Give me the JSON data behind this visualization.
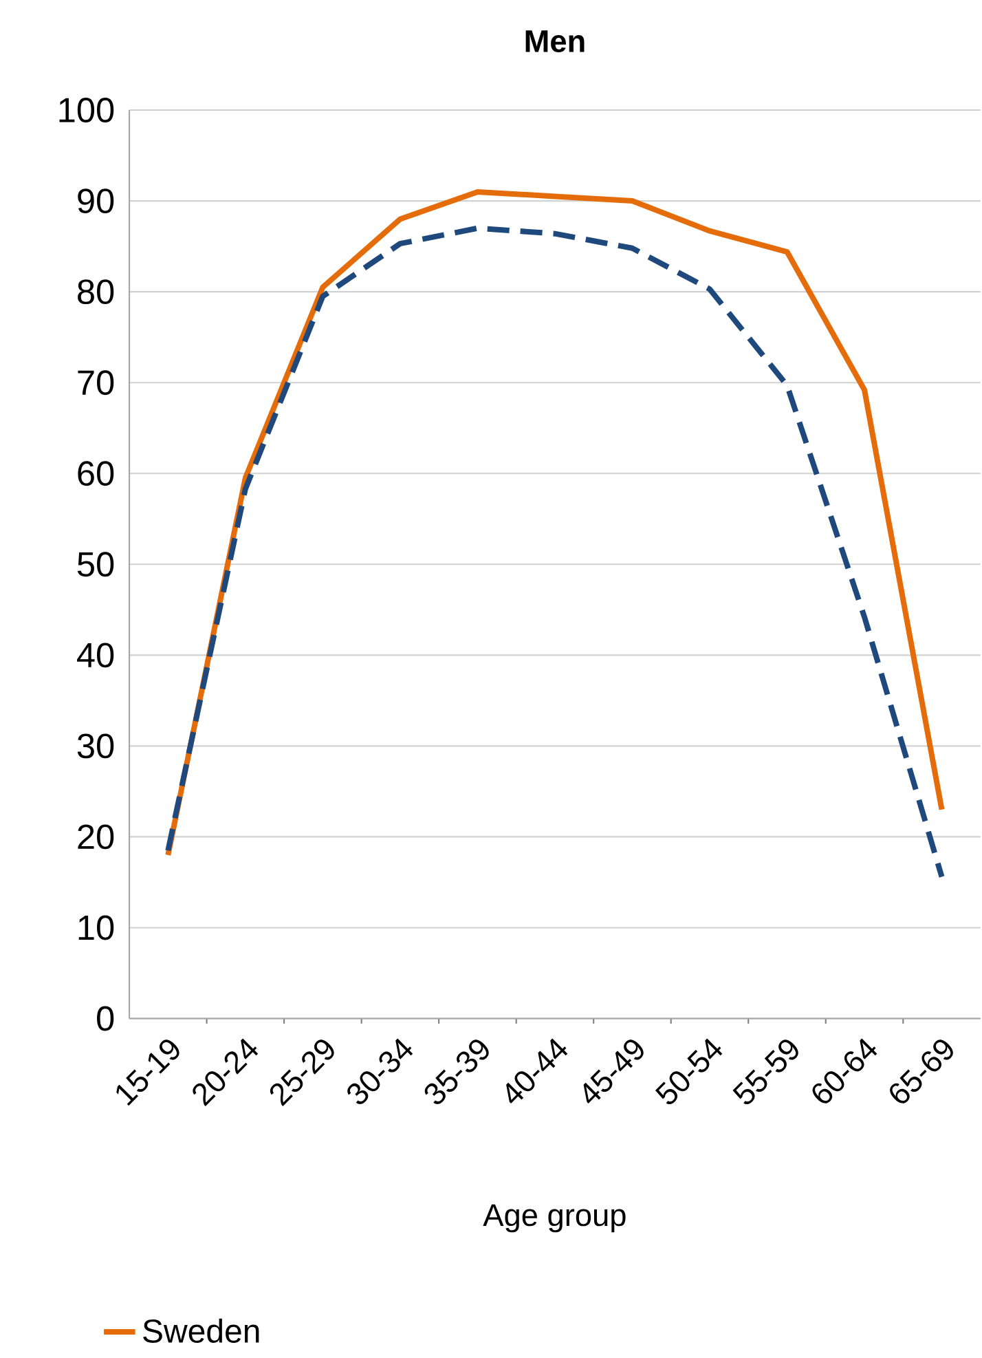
{
  "chart_data": {
    "type": "line",
    "title": "Men",
    "xlabel": "Age group",
    "categories": [
      "15-19",
      "20-24",
      "25-29",
      "30-34",
      "35-39",
      "40-44",
      "45-49",
      "50-54",
      "55-59",
      "60-64",
      "65-69"
    ],
    "series": [
      {
        "name": "Sweden",
        "color": "#e46c0a",
        "values": [
          18,
          59.5,
          80.5,
          88,
          91,
          90.5,
          90,
          86.7,
          84.4,
          69.2,
          23
        ],
        "line_style": "solid"
      },
      {
        "color": "#1f497d",
        "values": [
          18.5,
          58.3,
          79.5,
          85.3,
          87,
          86.4,
          84.8,
          80.3,
          69.7,
          44.2,
          15.6
        ],
        "line_style": "dashed"
      }
    ],
    "ylim": [
      0,
      100
    ],
    "yticks": [
      0,
      10,
      20,
      30,
      40,
      50,
      60,
      70,
      80,
      90,
      100
    ],
    "grid": "y",
    "legend": "bottom left",
    "marker": "none"
  }
}
